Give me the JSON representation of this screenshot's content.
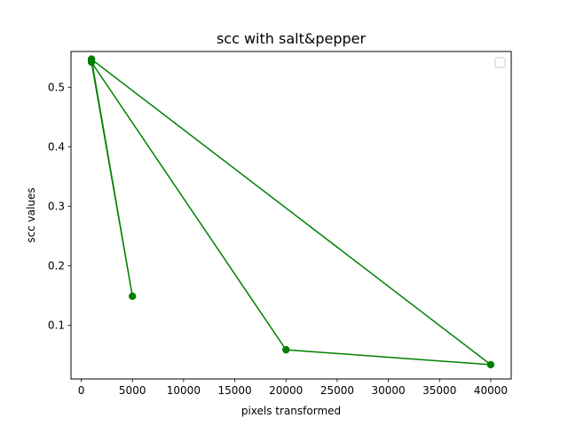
{
  "chart_data": {
    "type": "line",
    "title": "scc with salt&pepper",
    "xlabel": "pixels transformed",
    "ylabel": "scc values",
    "xlim": [
      -1000,
      42000
    ],
    "ylim": [
      0.01,
      0.56
    ],
    "xticks": [
      0,
      5000,
      10000,
      15000,
      20000,
      25000,
      30000,
      35000,
      40000
    ],
    "yticks": [
      0.1,
      0.2,
      0.3,
      0.4,
      0.5
    ],
    "ytick_labels": [
      "0.1",
      "0.2",
      "0.3",
      "0.4",
      "0.5"
    ],
    "grid": false,
    "legend": {
      "placement": "top-right",
      "entries": []
    },
    "series": [
      {
        "color": "#008000",
        "marker": "circle",
        "x": [
          1000,
          5000,
          1000,
          20000,
          40000,
          1000
        ],
        "y": [
          0.547,
          0.149,
          0.542,
          0.059,
          0.034,
          0.547
        ]
      }
    ]
  }
}
